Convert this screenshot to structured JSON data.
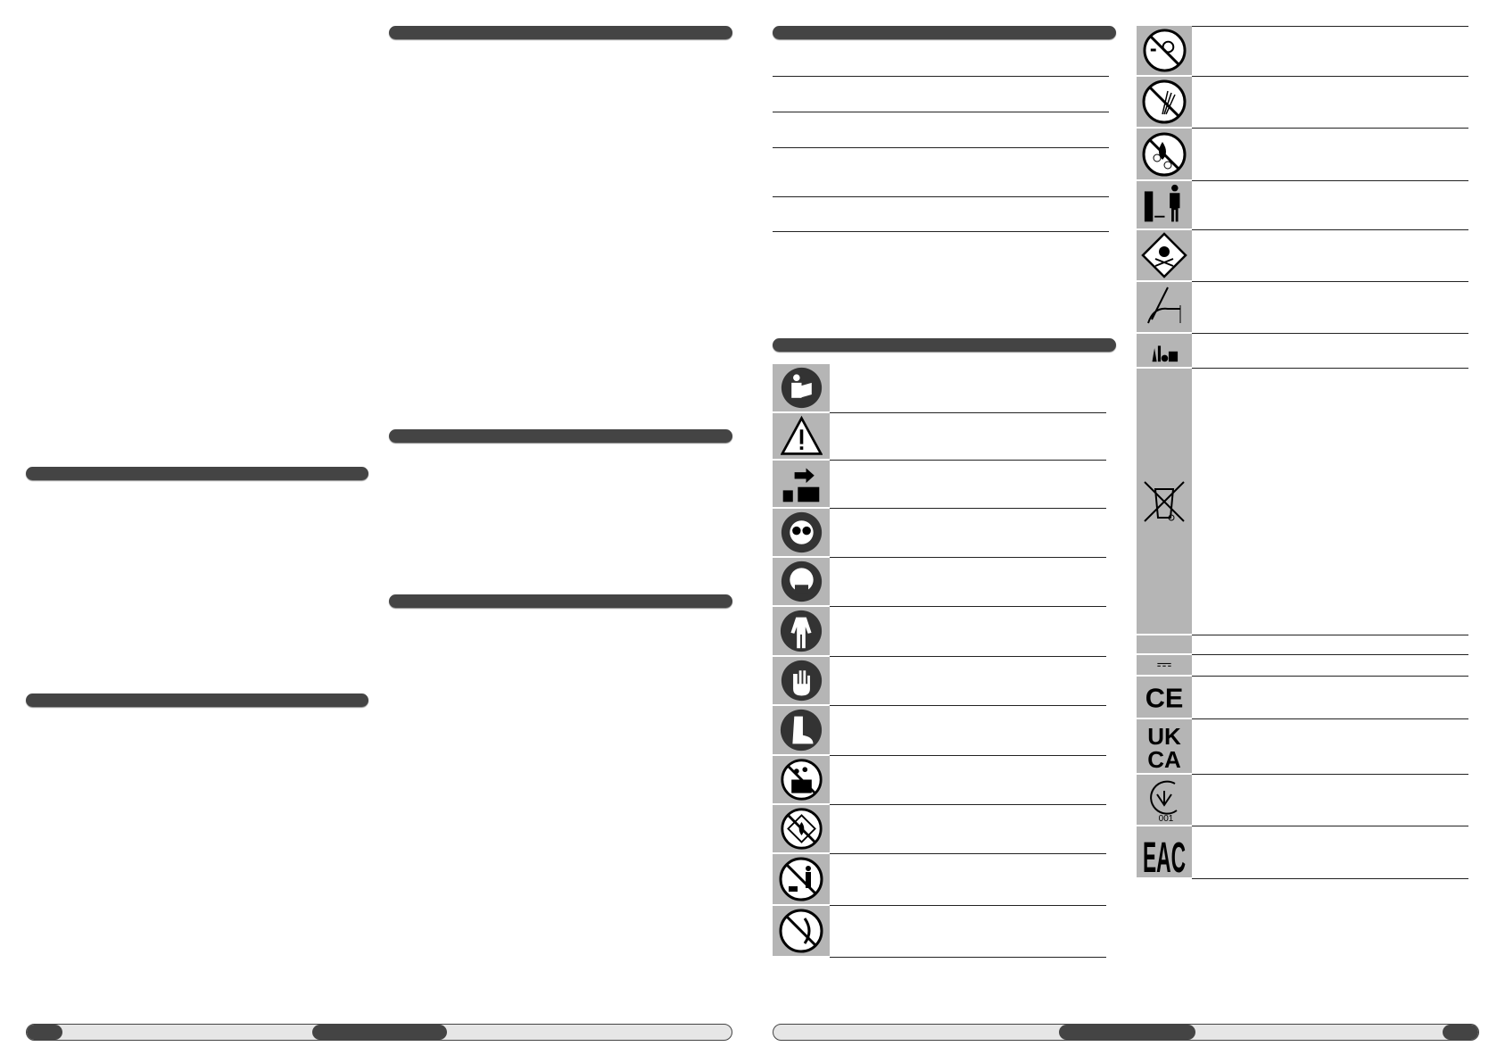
{
  "colors": {
    "section_bar": "#444444",
    "icon_cell": "#b5b5b5",
    "footer_fill": "#e6e6e6"
  },
  "icons_left": [
    "read-manual-icon",
    "warning-icon",
    "remove-battery-icon",
    "eye-protection-icon",
    "respirator-icon",
    "protective-clothing-icon",
    "gloves-icon",
    "safety-boots-icon",
    "no-rain-icon",
    "no-flammable-icon",
    "no-spray-people-animals-icon",
    "no-spray-electrical-icon"
  ],
  "icons_right": [
    "no-spray-fire-icon",
    "no-spray-plants-icon",
    "no-freezing-icon",
    "keep-distance-icon",
    "toxic-hazard-icon",
    "hand-injury-icon",
    "chemicals-icon",
    "weee-bin-icon",
    "blank-icon",
    "dc-current-icon",
    "ce-mark-icon",
    "ukca-mark-icon",
    "ukrsepro-mark-icon",
    "eac-mark-icon"
  ],
  "marks": {
    "ukca": "UK CA",
    "ukr": "001",
    "eac": "EAC"
  }
}
